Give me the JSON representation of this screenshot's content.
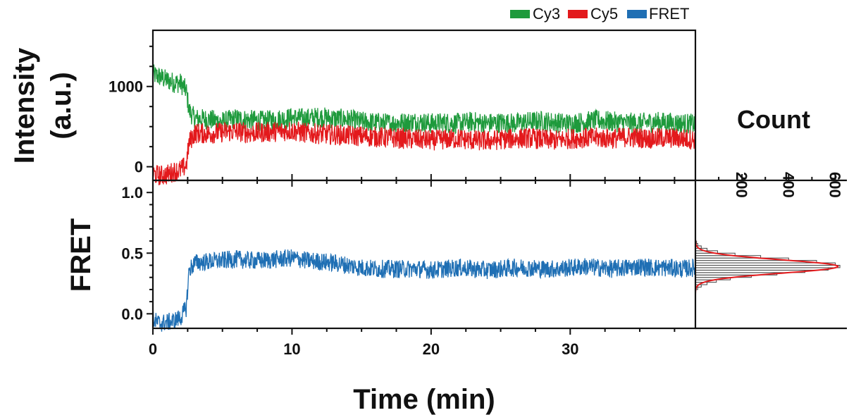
{
  "chart_data": [
    {
      "panel": "top",
      "type": "line",
      "ylabel_line1": "Intensity",
      "ylabel_line2": "(a.u.)",
      "xlim": [
        0,
        39
      ],
      "ylim": [
        -170,
        1700
      ],
      "yticks": [
        0,
        1000
      ],
      "ytick_labels": [
        "0",
        "1000"
      ],
      "series": [
        {
          "name": "Cy3",
          "color": "#1e9a3c",
          "x": [
            0,
            0.5,
            1,
            1.5,
            2,
            2.4,
            2.6,
            3,
            4,
            5,
            6,
            7,
            8,
            9,
            10,
            11,
            12,
            13,
            14,
            15,
            16,
            17,
            18,
            19,
            20,
            21,
            22,
            23,
            24,
            25,
            26,
            27,
            28,
            29,
            30,
            31,
            32,
            33,
            34,
            35,
            36,
            37,
            38,
            39
          ],
          "y": [
            1150,
            1120,
            1080,
            1050,
            1040,
            950,
            700,
            600,
            590,
            560,
            600,
            580,
            570,
            590,
            610,
            600,
            620,
            600,
            590,
            560,
            550,
            540,
            550,
            560,
            540,
            550,
            540,
            560,
            540,
            550,
            540,
            560,
            570,
            550,
            540,
            560,
            580,
            560,
            550,
            540,
            560,
            550,
            540,
            530
          ]
        },
        {
          "name": "Cy5",
          "color": "#e3191c",
          "x": [
            0,
            0.5,
            1,
            1.5,
            2,
            2.4,
            2.6,
            3,
            4,
            5,
            6,
            7,
            8,
            9,
            10,
            11,
            12,
            13,
            14,
            15,
            16,
            17,
            18,
            19,
            20,
            21,
            22,
            23,
            24,
            25,
            26,
            27,
            28,
            29,
            30,
            31,
            32,
            33,
            34,
            35,
            36,
            37,
            38,
            39
          ],
          "y": [
            -90,
            -110,
            -100,
            -60,
            -40,
            20,
            300,
            420,
            410,
            430,
            440,
            420,
            430,
            440,
            450,
            420,
            410,
            400,
            390,
            380,
            370,
            360,
            350,
            340,
            330,
            340,
            350,
            330,
            320,
            340,
            350,
            360,
            340,
            330,
            350,
            360,
            360,
            350,
            370,
            360,
            350,
            360,
            350,
            340
          ]
        }
      ]
    },
    {
      "panel": "bottom",
      "type": "line",
      "ylabel": "FRET",
      "xlabel": "Time (min)",
      "xlim": [
        0,
        39
      ],
      "ylim": [
        -0.12,
        1.1
      ],
      "xticks": [
        0,
        10,
        20,
        30
      ],
      "xtick_labels": [
        "0",
        "10",
        "20",
        "30"
      ],
      "yticks": [
        0.0,
        0.5,
        1.0
      ],
      "ytick_labels": [
        "0.0",
        "0.5",
        "1.0"
      ],
      "series": [
        {
          "name": "FRET",
          "color": "#1f6fb4",
          "x": [
            0,
            0.5,
            1,
            1.5,
            2,
            2.4,
            2.6,
            3,
            4,
            5,
            6,
            7,
            8,
            9,
            10,
            11,
            12,
            13,
            14,
            15,
            16,
            17,
            18,
            19,
            20,
            21,
            22,
            23,
            24,
            25,
            26,
            27,
            28,
            29,
            30,
            31,
            32,
            33,
            34,
            35,
            36,
            37,
            38,
            39
          ],
          "y": [
            -0.05,
            -0.08,
            -0.07,
            -0.06,
            -0.03,
            0.05,
            0.36,
            0.42,
            0.43,
            0.44,
            0.45,
            0.44,
            0.44,
            0.45,
            0.46,
            0.44,
            0.43,
            0.42,
            0.4,
            0.38,
            0.37,
            0.37,
            0.37,
            0.37,
            0.36,
            0.37,
            0.38,
            0.37,
            0.36,
            0.37,
            0.38,
            0.38,
            0.37,
            0.37,
            0.38,
            0.39,
            0.38,
            0.37,
            0.38,
            0.39,
            0.38,
            0.38,
            0.37,
            0.38
          ]
        }
      ]
    },
    {
      "panel": "histogram",
      "type": "bar",
      "orientation": "horizontal",
      "title": "Count",
      "xlim": [
        0,
        650
      ],
      "xticks": [
        200,
        400,
        600
      ],
      "xtick_labels": [
        "200",
        "400",
        "600"
      ],
      "bin_centers": [
        0.21,
        0.23,
        0.25,
        0.27,
        0.29,
        0.31,
        0.33,
        0.35,
        0.37,
        0.39,
        0.41,
        0.43,
        0.45,
        0.47,
        0.49,
        0.51,
        0.53,
        0.55,
        0.57,
        0.59
      ],
      "counts": [
        10,
        25,
        50,
        90,
        150,
        240,
        350,
        470,
        570,
        620,
        600,
        520,
        400,
        280,
        170,
        95,
        50,
        25,
        10,
        5
      ],
      "fit": {
        "type": "gaussian",
        "color": "#e3191c",
        "center": 0.39,
        "sigma": 0.055,
        "amplitude": 612
      },
      "bar_color": "#444444"
    }
  ],
  "legend": {
    "position": "top-right",
    "items": [
      {
        "label": "Cy3",
        "color": "#1e9a3c"
      },
      {
        "label": "Cy5",
        "color": "#e3191c"
      },
      {
        "label": "FRET",
        "color": "#1f6fb4"
      }
    ]
  }
}
